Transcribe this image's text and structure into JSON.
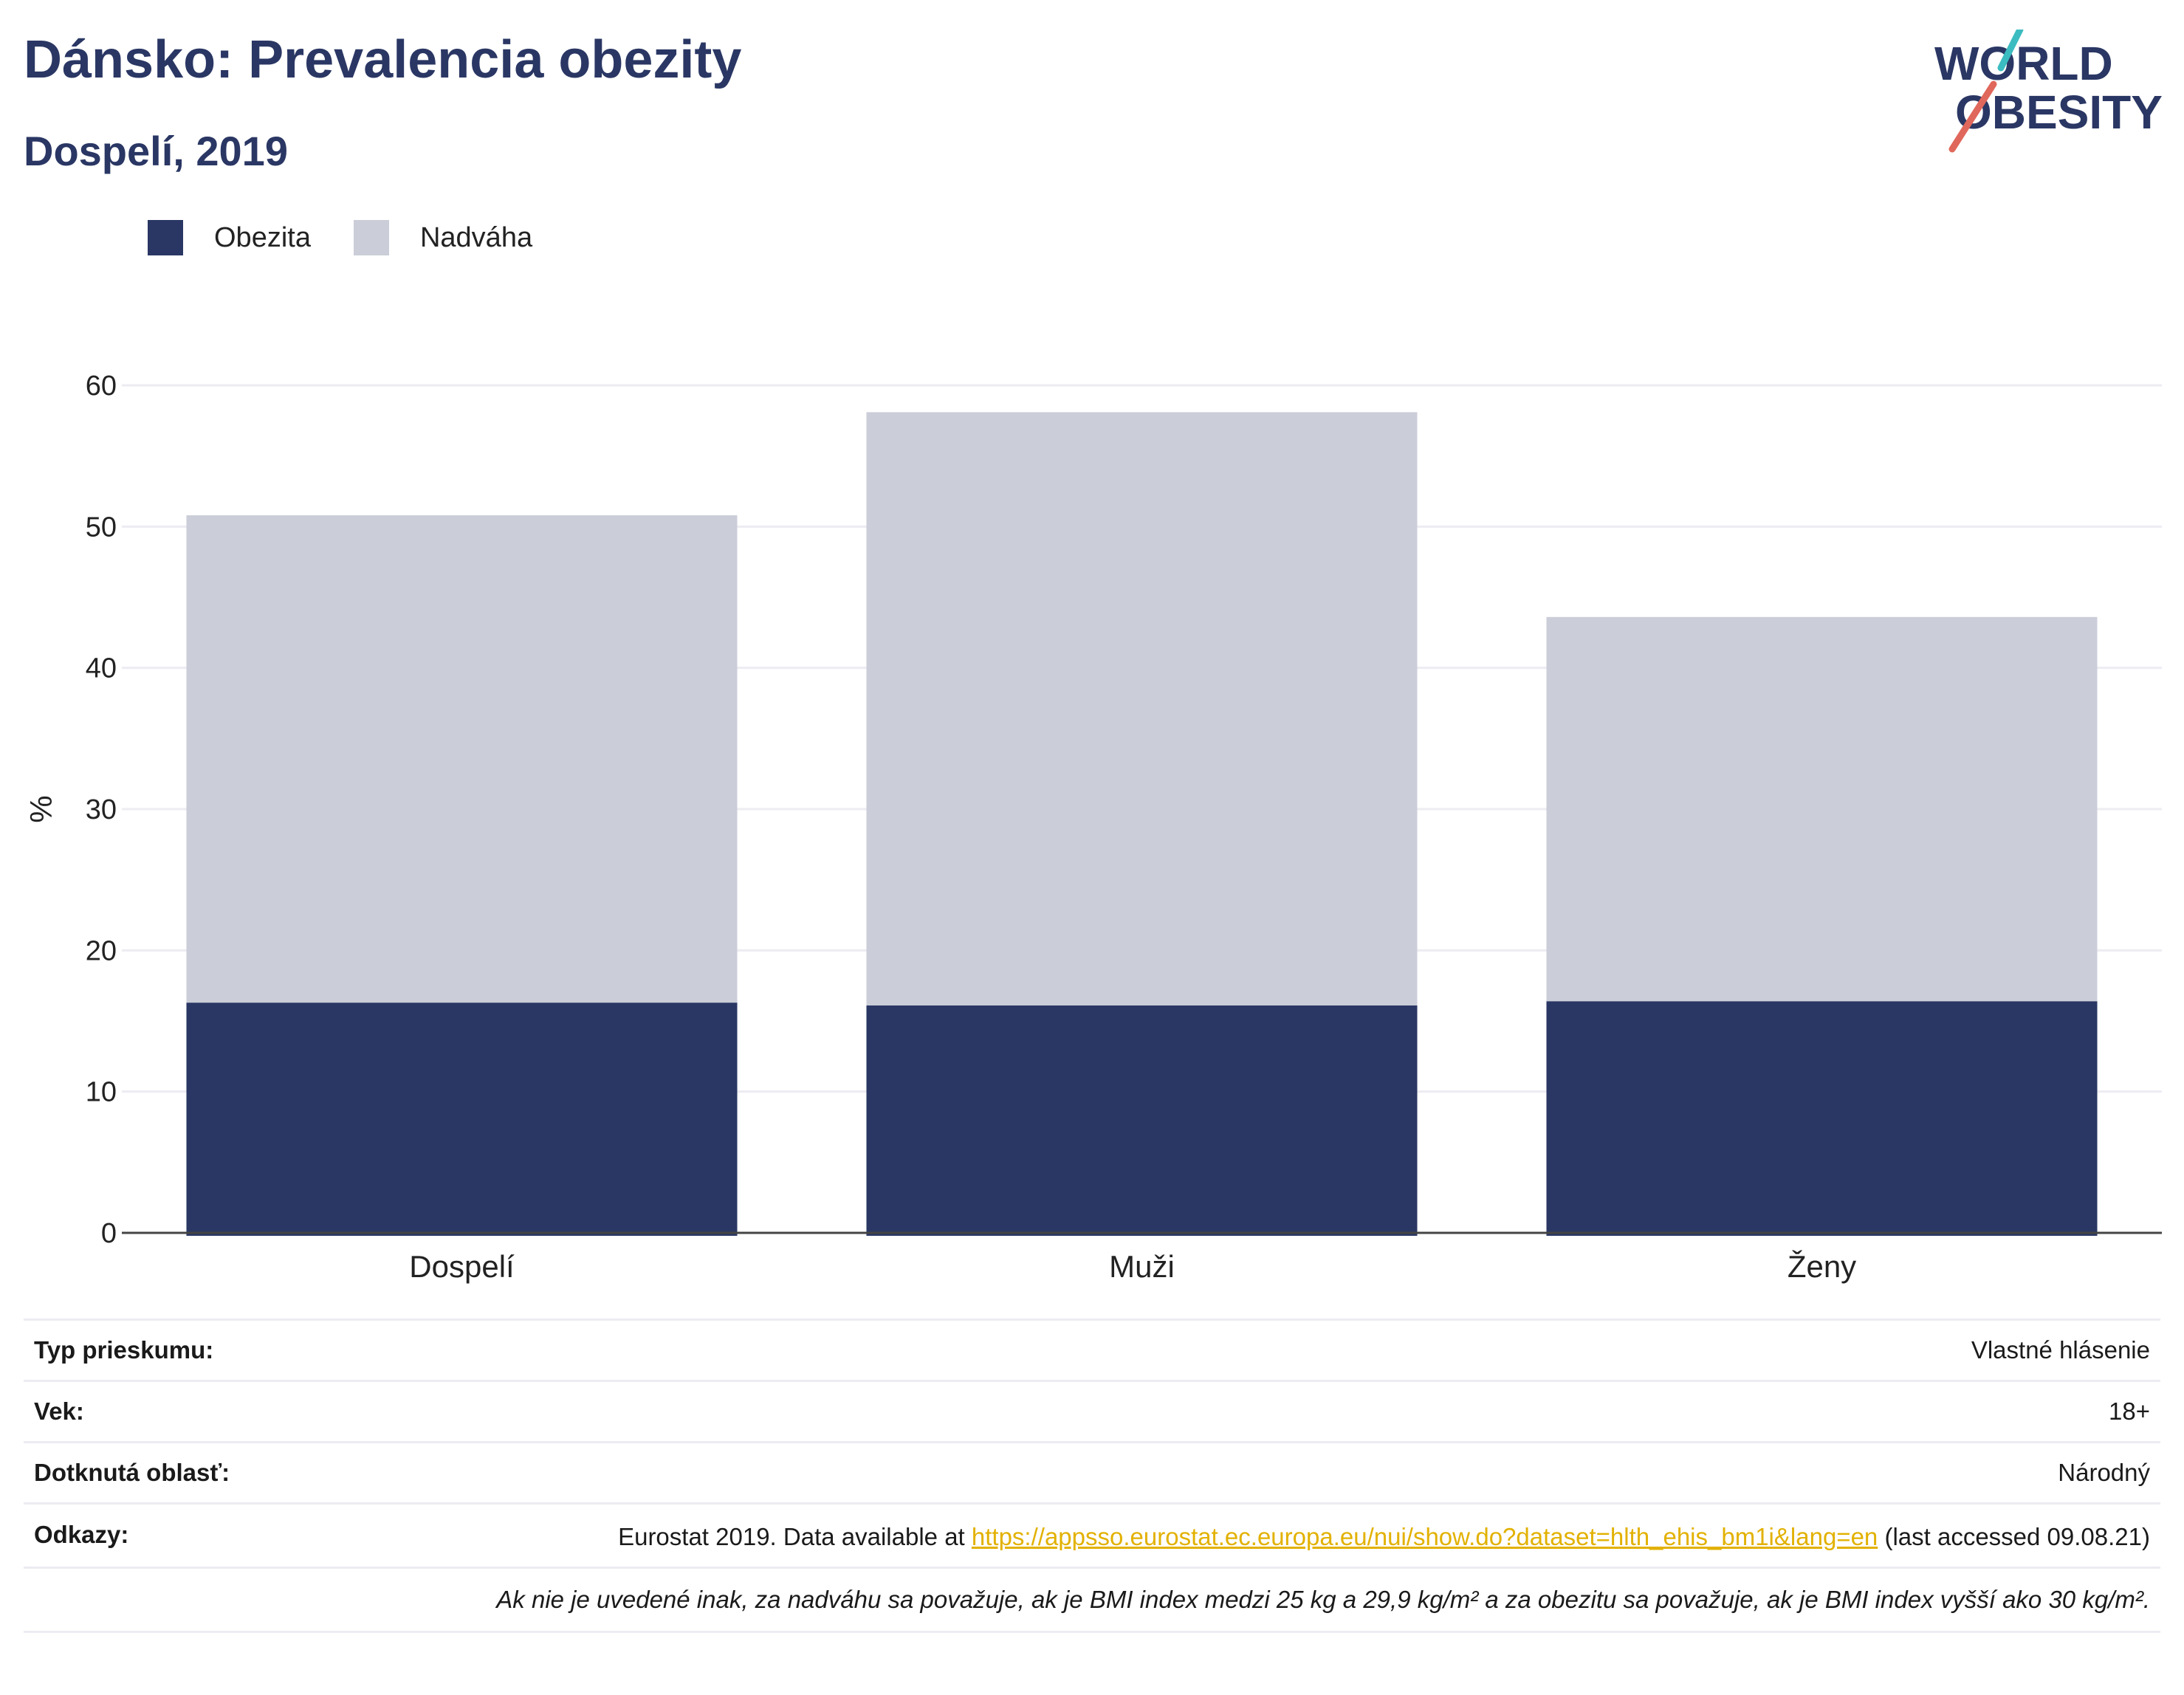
{
  "title": "Dánsko: Prevalencia obezity",
  "subtitle": "Dospelí, 2019",
  "logo": {
    "line1": "WORLD",
    "line2": "OBESITY"
  },
  "colors": {
    "obesity": "#2a3764",
    "overweight": "#cbcdd8",
    "title": "#2a3764",
    "link": "#e2b100",
    "accent_red": "#e0675b",
    "accent_teal": "#3bbcc0"
  },
  "legend": [
    {
      "label": "Obezita",
      "color": "#2a3764"
    },
    {
      "label": "Nadváha",
      "color": "#cbcdd8"
    }
  ],
  "chart_data": {
    "type": "bar",
    "stacked": true,
    "categories": [
      "Dospelí",
      "Muži",
      "Ženy"
    ],
    "series": [
      {
        "name": "Obezita",
        "values": [
          16.3,
          16.1,
          16.4
        ]
      },
      {
        "name": "Nadváha",
        "values": [
          34.5,
          42.0,
          27.2
        ]
      }
    ],
    "ylabel": "%",
    "ylim": [
      0,
      60
    ],
    "yticks": [
      0,
      10,
      20,
      30,
      40,
      50,
      60
    ],
    "grid": true,
    "legend_position": "top-left"
  },
  "info": {
    "survey_type_label": "Typ prieskumu:",
    "survey_type_value": "Vlastné hlásenie",
    "age_label": "Vek:",
    "age_value": "18+",
    "area_label": "Dotknutá oblasť:",
    "area_value": "Národný",
    "refs_label": "Odkazy:",
    "refs_prefix": "Eurostat 2019. Data available at ",
    "refs_link": "https://appsso.eurostat.ec.europa.eu/nui/show.do?dataset=hlth_ehis_bm1i&lang=en",
    "refs_suffix": " (last accessed 09.08.21)",
    "note": "Ak nie je uvedené inak, za nadváhu sa považuje, ak je BMI index medzi 25 kg a 29,9 kg/m² a za obezitu sa považuje, ak je BMI index vyšší ako 30 kg/m²."
  }
}
